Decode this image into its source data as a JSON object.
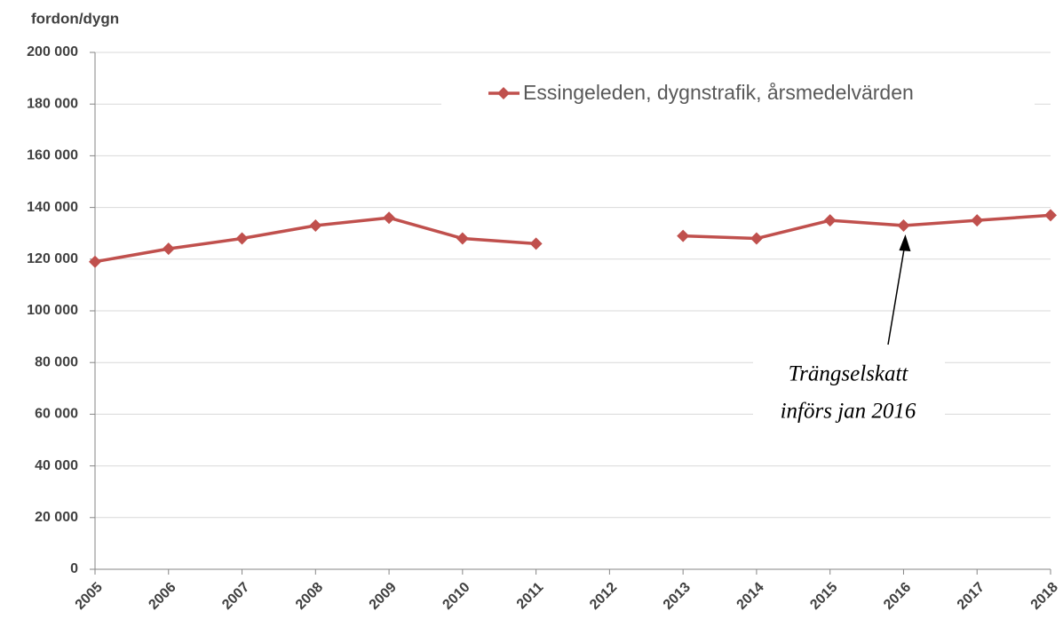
{
  "chart_data": {
    "type": "line",
    "y_label": "fordon/dygn",
    "categories": [
      "2005",
      "2006",
      "2007",
      "2008",
      "2009",
      "2010",
      "2011",
      "2012",
      "2013",
      "2014",
      "2015",
      "2016",
      "2017",
      "2018"
    ],
    "series": [
      {
        "name": "Essingeleden, dygnstrafik, årsmedelvärden",
        "color": "#c0504d",
        "values": [
          119000,
          124000,
          128000,
          133000,
          136000,
          128000,
          126000,
          null,
          129000,
          128000,
          135000,
          133000,
          135000,
          137000
        ]
      }
    ],
    "ylim": [
      0,
      200000
    ],
    "yticks": [
      {
        "value": 0,
        "label": "0"
      },
      {
        "value": 20000,
        "label": "20 000"
      },
      {
        "value": 40000,
        "label": "40 000"
      },
      {
        "value": 60000,
        "label": "60 000"
      },
      {
        "value": 80000,
        "label": "80 000"
      },
      {
        "value": 100000,
        "label": "100 000"
      },
      {
        "value": 120000,
        "label": "120 000"
      },
      {
        "value": 140000,
        "label": "140 000"
      },
      {
        "value": 160000,
        "label": "160 000"
      },
      {
        "value": 180000,
        "label": "180 000"
      },
      {
        "value": 200000,
        "label": "200 000"
      }
    ],
    "grid": true,
    "annotation": {
      "lines": [
        "Trängselskatt",
        "införs jan 2016"
      ],
      "category": "2016"
    }
  }
}
